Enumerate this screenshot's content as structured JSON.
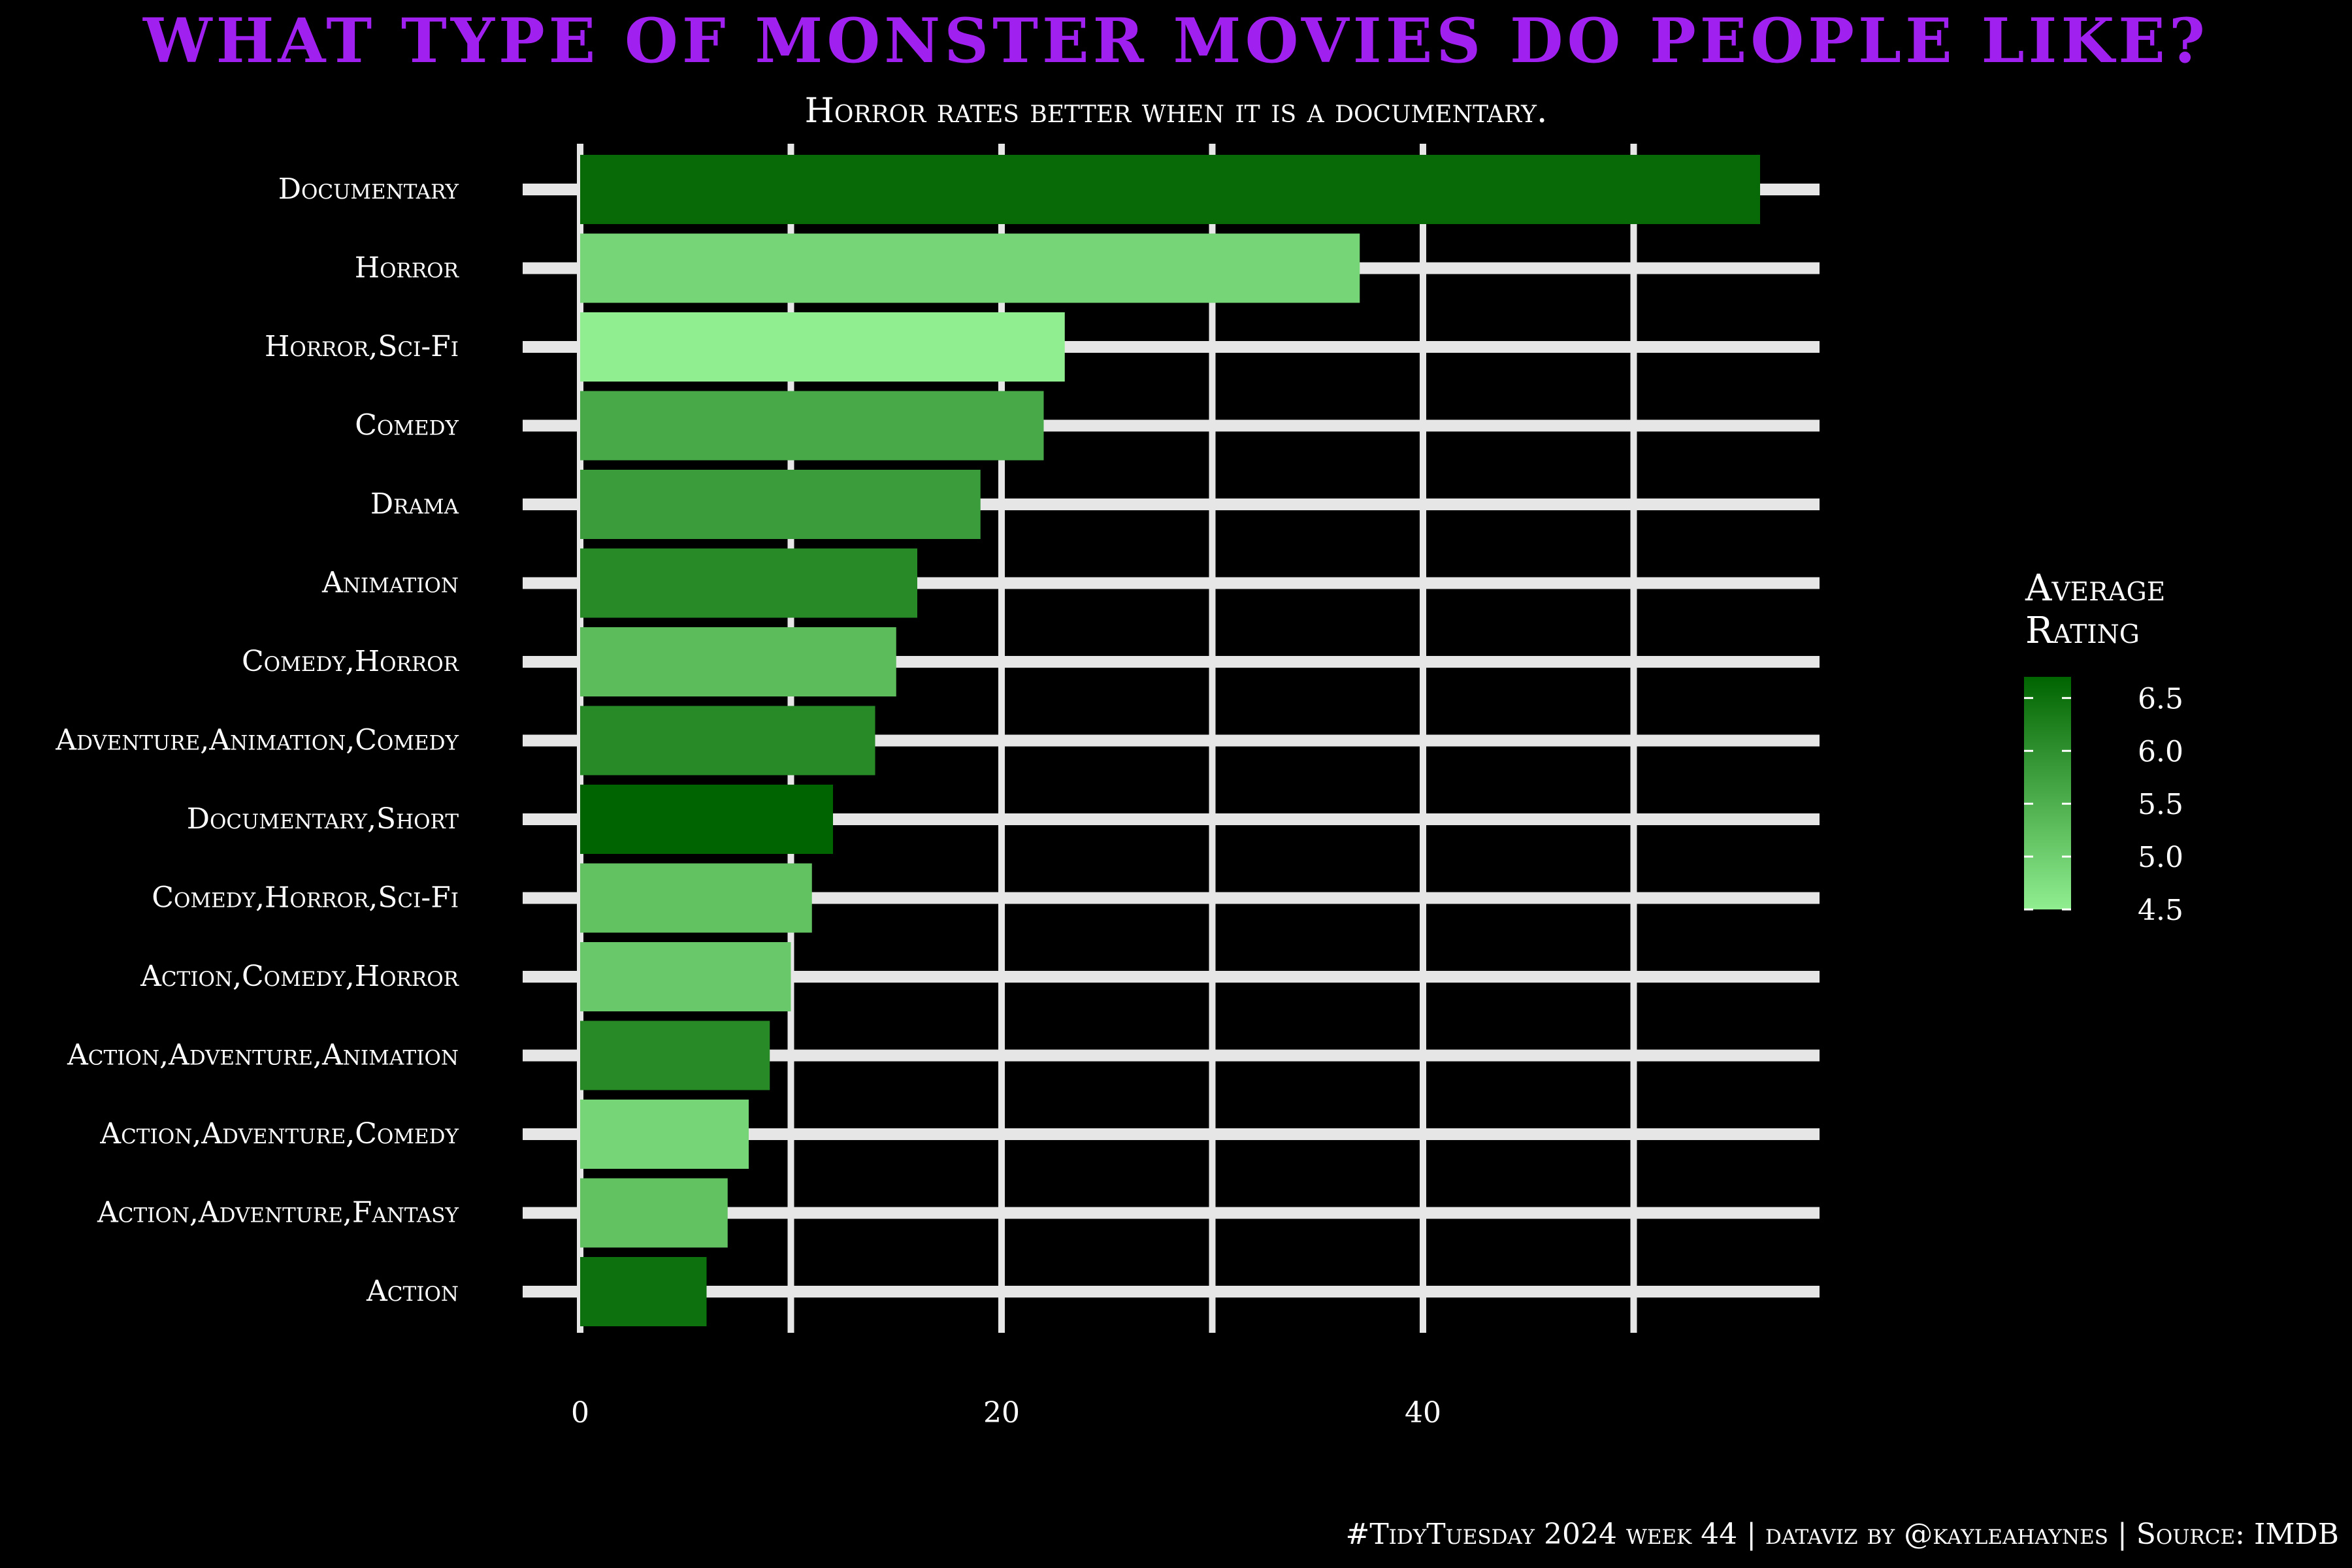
{
  "chart_data": {
    "type": "bar",
    "orientation": "horizontal",
    "title": "What type of monster movies do people like?",
    "subtitle": "Horror rates better when it is a documentary.",
    "xlabel": "",
    "ylabel": "",
    "xlim": [
      0,
      60
    ],
    "x_ticks": [
      0,
      20,
      40
    ],
    "grid": true,
    "categories": [
      "Documentary",
      "Horror",
      "Horror,Sci-Fi",
      "Comedy",
      "Drama",
      "Animation",
      "Comedy,Horror",
      "Adventure,Animation,Comedy",
      "Documentary,Short",
      "Comedy,Horror,Sci-Fi",
      "Action,Comedy,Horror",
      "Action,Adventure,Animation",
      "Action,Adventure,Comedy",
      "Action,Adventure,Fantasy",
      "Action"
    ],
    "values": [
      56,
      37,
      23,
      22,
      19,
      16,
      15,
      14,
      12,
      11,
      10,
      9,
      8,
      7,
      6
    ],
    "average_rating": [
      6.6,
      4.9,
      4.5,
      5.6,
      5.8,
      6.1,
      5.3,
      6.1,
      6.7,
      5.2,
      5.1,
      6.1,
      4.9,
      5.2,
      6.5
    ],
    "legend": {
      "title": "Average Rating",
      "ticks": [
        "6.5",
        "6.0",
        "5.5",
        "5.0",
        "4.5"
      ],
      "tick_values": [
        6.5,
        6.0,
        5.5,
        5.0,
        4.5
      ],
      "range": [
        4.5,
        6.7
      ],
      "color_low": "#90ee90",
      "color_high": "#006400",
      "placement": "right"
    },
    "caption": "#TidyTuesday 2024 week 44 | dataviz by @kayleahaynes | Source: IMDB"
  },
  "colors": {
    "background": "#000000",
    "title": "#a020f0",
    "grid": "#e6e6e6",
    "text": "#ffffff"
  }
}
